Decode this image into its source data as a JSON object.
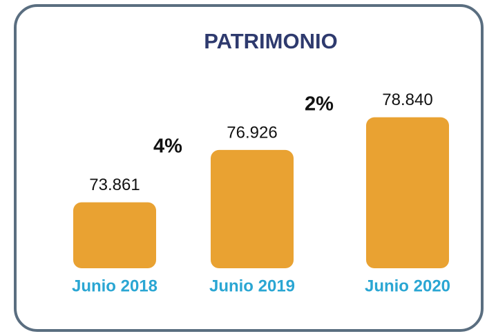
{
  "chart_data": {
    "type": "bar",
    "title": "PATRIMONIO",
    "categories": [
      "Junio 2018",
      "Junio 2019",
      "Junio 2020"
    ],
    "values": [
      73861,
      76926,
      78840
    ],
    "value_labels": [
      "73.861",
      "76.926",
      "78.840"
    ],
    "color": "#e9a232",
    "ylim": [
      70000,
      80000
    ],
    "annotations": [
      "4%",
      "2%"
    ]
  }
}
